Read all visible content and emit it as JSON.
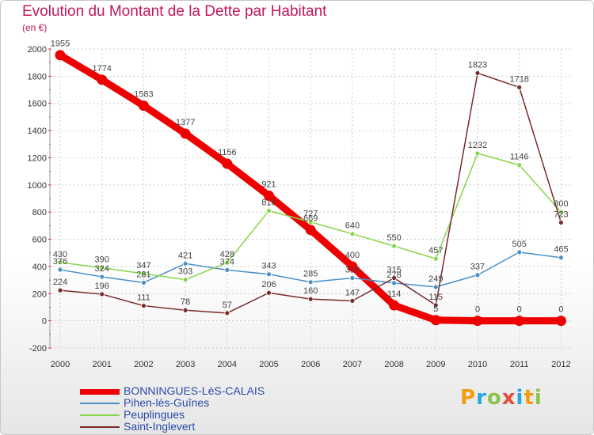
{
  "title": "Evolution du Montant de la Dette par Habitant",
  "unit_label": "(en €)",
  "logo": {
    "letters": [
      "P",
      "r",
      "o",
      "x",
      "i",
      "t",
      "i"
    ],
    "colors": [
      "#f39c12",
      "#27a8e0",
      "#8bc34a",
      "#e74c3c",
      "#27a8e0",
      "#f39c12",
      "#8bc34a"
    ]
  },
  "colors": {
    "title": "#c2185b",
    "axis_text": "#333333",
    "grid": "#cccccc"
  },
  "chart_data": {
    "type": "line",
    "title": "Evolution du Montant de la Dette par Habitant",
    "ylabel": "(en €)",
    "xlabel": "",
    "ylim": [
      -200,
      2000
    ],
    "yticks": [
      -200,
      0,
      200,
      400,
      600,
      800,
      1000,
      1200,
      1400,
      1600,
      1800,
      2000
    ],
    "categories": [
      "2000",
      "2001",
      "2002",
      "2003",
      "2004",
      "2005",
      "2006",
      "2007",
      "2008",
      "2009",
      "2010",
      "2011",
      "2012"
    ],
    "grid": true,
    "legend_position": "bottom-left",
    "series": [
      {
        "name": "BONNINGUES-LèS-CALAIS",
        "color": "#ee0000",
        "values": [
          1955,
          1774,
          1583,
          1377,
          1156,
          921,
          669,
          400,
          114,
          5,
          0,
          0,
          0
        ]
      },
      {
        "name": "Pihen-lès-Guînes",
        "color": "#4a90c8",
        "values": [
          376,
          324,
          281,
          421,
          374,
          343,
          285,
          315,
          278,
          249,
          337,
          505,
          465
        ]
      },
      {
        "name": "Peuplingues",
        "color": "#86d64a",
        "values": [
          430,
          390,
          347,
          303,
          428,
          810,
          727,
          640,
          550,
          457,
          1232,
          1146,
          800
        ]
      },
      {
        "name": "Saint-Inglevert",
        "color": "#7a2a2a",
        "values": [
          224,
          196,
          111,
          78,
          57,
          206,
          160,
          147,
          315,
          115,
          1823,
          1718,
          723
        ]
      }
    ]
  }
}
